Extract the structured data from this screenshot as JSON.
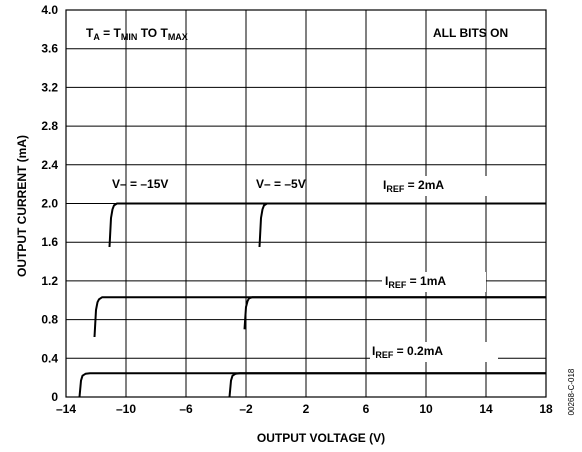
{
  "chart_data": {
    "type": "line",
    "xlabel": "OUTPUT VOLTAGE (V)",
    "ylabel": "OUTPUT CURRENT (mA)",
    "xlim": [
      -14,
      18
    ],
    "ylim": [
      0,
      4.0
    ],
    "x_ticks": [
      -14,
      -10,
      -6,
      -2,
      2,
      6,
      10,
      14,
      18
    ],
    "x_tick_labels": [
      "–14",
      "–10",
      "–6",
      "–2",
      "2",
      "6",
      "10",
      "14",
      "18"
    ],
    "y_ticks": [
      0,
      0.4,
      0.8,
      1.2,
      1.6,
      2.0,
      2.4,
      2.8,
      3.2,
      3.6,
      4.0
    ],
    "y_tick_labels": [
      "0",
      "0.4",
      "0.8",
      "1.2",
      "1.6",
      "2.0",
      "2.4",
      "2.8",
      "3.2",
      "3.6",
      "4.0"
    ],
    "grid": true,
    "annotations": {
      "temp": {
        "base": "T",
        "sub1": "A",
        "mid1": " = T",
        "sub2": "MIN",
        "mid2": " TO T",
        "sub3": "MAX"
      },
      "all_bits": "ALL BITS ON",
      "v15": "V– = –15V",
      "v5": "V– = –5V",
      "iref2": {
        "base": "I",
        "sub": "REF",
        "rest": " = 2mA"
      },
      "iref1": {
        "base": "I",
        "sub": "REF",
        "rest": " = 1mA"
      },
      "iref02": {
        "base": "I",
        "sub": "REF",
        "rest": " = 0.2mA"
      }
    },
    "figure_id": "00268-C-018",
    "series": [
      {
        "x": [
          -11.1,
          -11.0,
          -10.9,
          -10.8,
          -10.6,
          -10.3,
          18
        ],
        "y": [
          1.55,
          1.85,
          1.94,
          1.98,
          2.0,
          2.0,
          2.0
        ]
      },
      {
        "x": [
          -1.1,
          -1.0,
          -0.9,
          -0.8,
          -0.6,
          -0.3,
          18
        ],
        "y": [
          1.55,
          1.85,
          1.94,
          1.98,
          2.0,
          2.0,
          2.0
        ]
      },
      {
        "x": [
          -12.1,
          -12.0,
          -11.9,
          -11.8,
          -11.6,
          -11.3,
          18
        ],
        "y": [
          0.62,
          0.9,
          0.98,
          1.01,
          1.03,
          1.03,
          1.03
        ]
      },
      {
        "x": [
          -2.1,
          -2.0,
          -1.9,
          -1.8,
          -1.6,
          -1.3,
          18
        ],
        "y": [
          0.7,
          0.93,
          0.99,
          1.02,
          1.03,
          1.03,
          1.03
        ]
      },
      {
        "x": [
          -13.1,
          -13.0,
          -12.9,
          -12.7,
          -12.4,
          18
        ],
        "y": [
          0.0,
          0.17,
          0.22,
          0.24,
          0.245,
          0.245
        ]
      },
      {
        "x": [
          -3.1,
          -3.0,
          -2.9,
          -2.7,
          -2.4,
          18
        ],
        "y": [
          0.0,
          0.17,
          0.22,
          0.24,
          0.245,
          0.245
        ]
      }
    ]
  }
}
